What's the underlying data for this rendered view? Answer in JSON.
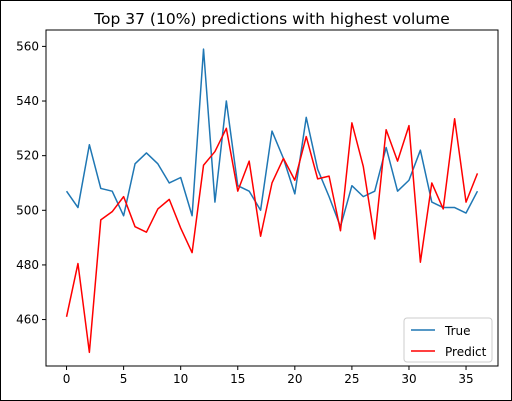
{
  "chart_data": {
    "type": "line",
    "title": "Top 37 (10%) predictions with highest volume",
    "xlabel": "",
    "ylabel": "",
    "xlim": [
      -1.8,
      37.8
    ],
    "ylim": [
      443,
      566
    ],
    "xticks": [
      0,
      5,
      10,
      15,
      20,
      25,
      30,
      35
    ],
    "yticks": [
      460,
      480,
      500,
      520,
      540,
      560
    ],
    "grid": false,
    "legend_position": "lower right",
    "x": [
      0,
      1,
      2,
      3,
      4,
      5,
      6,
      7,
      8,
      9,
      10,
      11,
      12,
      13,
      14,
      15,
      16,
      17,
      18,
      19,
      20,
      21,
      22,
      23,
      24,
      25,
      26,
      27,
      28,
      29,
      30,
      31,
      32,
      33,
      34,
      35,
      36
    ],
    "series": [
      {
        "name": "True",
        "color": "#1f77b4",
        "values": [
          507,
          501,
          524,
          508,
          507,
          498,
          517,
          521,
          517,
          510,
          512,
          498,
          559,
          503,
          540,
          509,
          507,
          500,
          529,
          519,
          506,
          534,
          515,
          505,
          494,
          509,
          505,
          507,
          523,
          507,
          511,
          522,
          503,
          501,
          501,
          499,
          507
        ]
      },
      {
        "name": "Predict",
        "color": "#ff0000",
        "values": [
          461,
          480.5,
          448,
          496.5,
          499.5,
          505,
          494,
          492,
          500.5,
          504,
          493.5,
          484.5,
          516.5,
          521.5,
          530,
          507,
          518,
          490.5,
          510,
          519,
          511,
          527,
          511.5,
          512.5,
          492.5,
          532,
          516,
          489.5,
          529.5,
          518,
          531,
          481,
          510,
          500.5,
          533.5,
          503,
          513.5
        ]
      }
    ]
  }
}
